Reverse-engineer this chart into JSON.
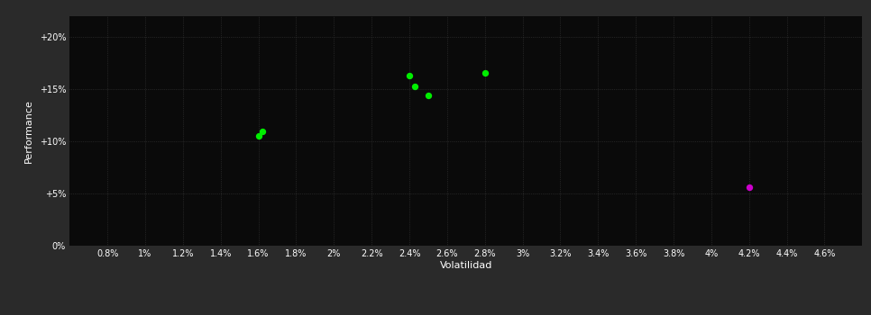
{
  "outer_bg_color": "#2a2a2a",
  "plot_bg_color": "#0a0a0a",
  "grid_color": "#3a3a3a",
  "text_color": "#ffffff",
  "green_points": [
    [
      1.6,
      10.5
    ],
    [
      1.62,
      10.9
    ],
    [
      2.4,
      16.3
    ],
    [
      2.43,
      15.2
    ],
    [
      2.5,
      14.4
    ],
    [
      2.8,
      16.5
    ]
  ],
  "magenta_points": [
    [
      4.2,
      5.6
    ]
  ],
  "green_color": "#00ee00",
  "magenta_color": "#cc00cc",
  "xlabel": "Volatilidad",
  "ylabel": "Performance",
  "xlim": [
    0.6,
    4.8
  ],
  "ylim": [
    0,
    22
  ],
  "xticks": [
    0.8,
    1.0,
    1.2,
    1.4,
    1.6,
    1.8,
    2.0,
    2.2,
    2.4,
    2.6,
    2.8,
    3.0,
    3.2,
    3.4,
    3.6,
    3.8,
    4.0,
    4.2,
    4.4,
    4.6
  ],
  "yticks": [
    0,
    5,
    10,
    15,
    20
  ],
  "ytick_labels": [
    "0%",
    "+5%",
    "+10%",
    "+15%",
    "+20%"
  ],
  "marker_size": 28
}
